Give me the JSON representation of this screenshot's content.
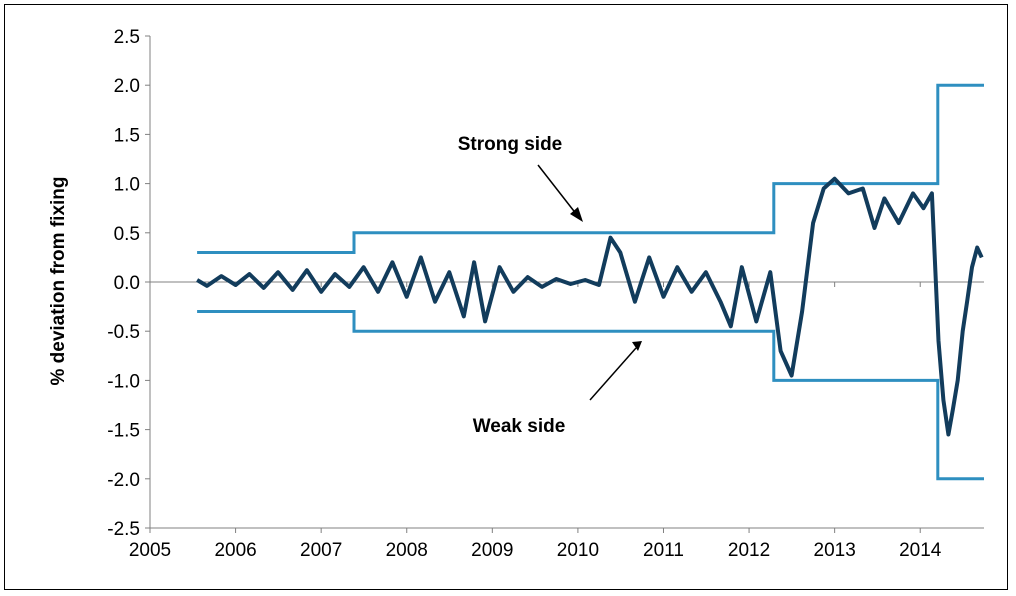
{
  "chart_data": {
    "type": "line",
    "title": "",
    "xlabel": "",
    "ylabel": "% deviation from fixing",
    "xlim": [
      "2005-01-01",
      "2014-09-30"
    ],
    "ylim": [
      -2.5,
      2.5
    ],
    "grid": false,
    "x_tick_labels": [
      "2005",
      "2006",
      "2007",
      "2008",
      "2009",
      "2010",
      "2011",
      "2012",
      "2013",
      "2014"
    ],
    "y_tick_labels": [
      "-2.5",
      "-2.0",
      "-1.5",
      "-1.0",
      "-0.5",
      "0.0",
      "0.5",
      "1.0",
      "1.5",
      "2.0",
      "2.5"
    ],
    "colors": {
      "band": "#2e8fc0",
      "deviation": "#123c5c"
    },
    "annotations": [
      {
        "text": "Strong side",
        "points_to": "upper band"
      },
      {
        "text": "Weak side",
        "points_to": "lower band"
      }
    ],
    "series": [
      {
        "role": "upper band",
        "x": [
          "2005-07-21",
          "2007-05-21",
          "2007-05-21",
          "2012-04-16",
          "2012-04-16",
          "2014-03-17",
          "2014-03-17",
          "2014-09-30"
        ],
        "y": [
          0.3,
          0.3,
          0.5,
          0.5,
          1.0,
          1.0,
          2.0,
          2.0
        ]
      },
      {
        "role": "lower band",
        "x": [
          "2005-07-21",
          "2007-05-21",
          "2007-05-21",
          "2012-04-16",
          "2012-04-16",
          "2014-03-17",
          "2014-03-17",
          "2014-09-30"
        ],
        "y": [
          -0.3,
          -0.3,
          -0.5,
          -0.5,
          -1.0,
          -1.0,
          -2.0,
          -2.0
        ]
      },
      {
        "role": "deviation",
        "x": [
          "2005-07-21",
          "2005-09-01",
          "2005-11-01",
          "2006-01-01",
          "2006-03-01",
          "2006-05-01",
          "2006-07-01",
          "2006-09-01",
          "2006-11-01",
          "2007-01-01",
          "2007-03-01",
          "2007-05-01",
          "2007-07-01",
          "2007-09-01",
          "2007-11-01",
          "2008-01-01",
          "2008-03-01",
          "2008-05-01",
          "2008-07-01",
          "2008-09-01",
          "2008-10-15",
          "2008-12-01",
          "2009-02-01",
          "2009-04-01",
          "2009-06-01",
          "2009-08-01",
          "2009-10-01",
          "2009-12-01",
          "2010-02-01",
          "2010-04-01",
          "2010-05-20",
          "2010-07-01",
          "2010-09-01",
          "2010-11-01",
          "2011-01-01",
          "2011-03-01",
          "2011-05-01",
          "2011-07-01",
          "2011-09-01",
          "2011-10-15",
          "2011-12-01",
          "2012-02-01",
          "2012-04-01",
          "2012-05-15",
          "2012-07-01",
          "2012-08-15",
          "2012-10-01",
          "2012-11-15",
          "2013-01-01",
          "2013-03-01",
          "2013-05-01",
          "2013-06-20",
          "2013-08-01",
          "2013-10-01",
          "2013-12-01",
          "2014-01-15",
          "2014-02-20",
          "2014-03-20",
          "2014-04-10",
          "2014-05-01",
          "2014-05-20",
          "2014-06-10",
          "2014-07-01",
          "2014-07-20",
          "2014-08-10",
          "2014-09-01",
          "2014-09-20"
        ],
        "y": [
          0.02,
          -0.04,
          0.06,
          -0.03,
          0.08,
          -0.06,
          0.1,
          -0.08,
          0.12,
          -0.1,
          0.08,
          -0.05,
          0.15,
          -0.1,
          0.2,
          -0.15,
          0.25,
          -0.2,
          0.1,
          -0.35,
          0.2,
          -0.4,
          0.15,
          -0.1,
          0.05,
          -0.05,
          0.03,
          -0.02,
          0.02,
          -0.03,
          0.45,
          0.3,
          -0.2,
          0.25,
          -0.15,
          0.15,
          -0.1,
          0.1,
          -0.2,
          -0.45,
          0.15,
          -0.4,
          0.1,
          -0.7,
          -0.95,
          -0.3,
          0.6,
          0.95,
          1.05,
          0.9,
          0.95,
          0.55,
          0.85,
          0.6,
          0.9,
          0.75,
          0.9,
          -0.6,
          -1.2,
          -1.55,
          -1.3,
          -1.0,
          -0.5,
          -0.2,
          0.15,
          0.35,
          0.25
        ]
      }
    ]
  }
}
